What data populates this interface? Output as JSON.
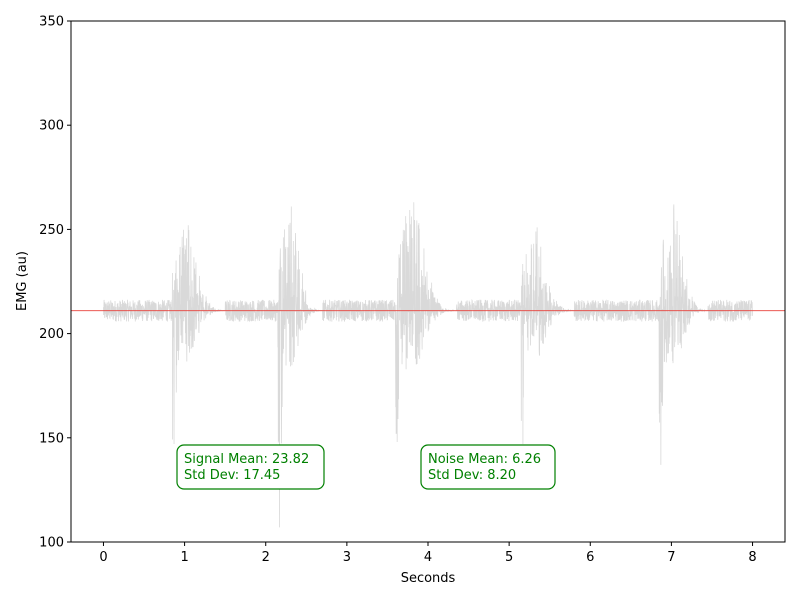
{
  "chart_data": {
    "type": "line",
    "title": "",
    "xlabel": "Seconds",
    "ylabel": "EMG (au)",
    "xlim": [
      -0.4,
      8.4
    ],
    "ylim": [
      100,
      350
    ],
    "xticks": [
      "0",
      "1",
      "2",
      "3",
      "4",
      "5",
      "6",
      "7",
      "8"
    ],
    "yticks": [
      "100",
      "150",
      "200",
      "250",
      "300",
      "350"
    ],
    "grid": false,
    "baseline": 211,
    "signal_color": "#d9d9d9",
    "baseline_color": "#e8413a",
    "annotation_color": "#008000",
    "quiet_band": [
      205,
      219
    ],
    "bursts": [
      {
        "x": [
          0.85,
          1.5
        ],
        "min": 147,
        "max": 252
      },
      {
        "x": [
          2.15,
          2.7
        ],
        "min": 107,
        "max": 261
      },
      {
        "x": [
          3.6,
          4.35
        ],
        "min": 148,
        "max": 263
      },
      {
        "x": [
          5.15,
          5.8
        ],
        "min": 147,
        "max": 251
      },
      {
        "x": [
          6.85,
          7.45
        ],
        "min": 137,
        "max": 262
      }
    ],
    "series_x_range": [
      0,
      8
    ]
  },
  "annotations": {
    "signal": {
      "line1": "Signal Mean: 23.82",
      "line2": "Std Dev: 17.45"
    },
    "noise": {
      "line1": "Noise Mean: 6.26",
      "line2": "Std Dev: 8.20"
    }
  }
}
